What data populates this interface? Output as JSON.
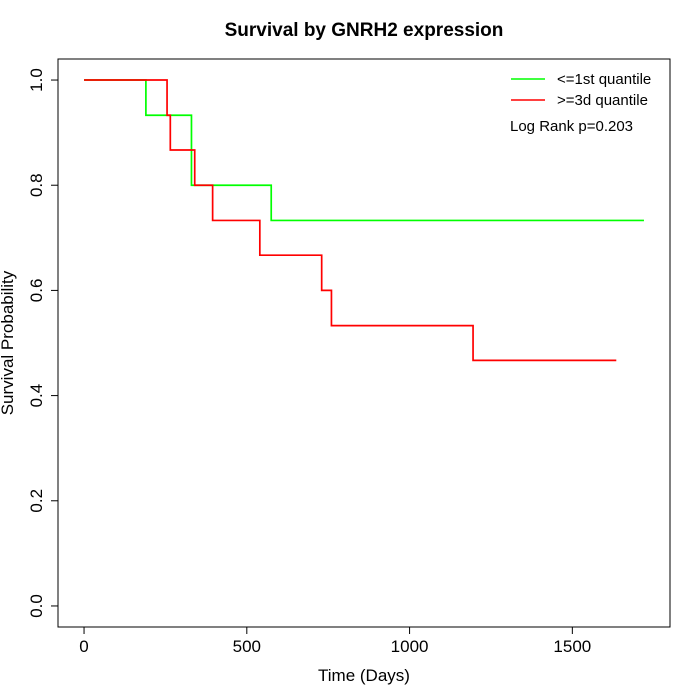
{
  "chart_data": {
    "type": "line",
    "subtype": "kaplan-meier step",
    "title": "Survival by GNRH2 expression",
    "xlabel": "Time (Days)",
    "ylabel": "Survival Probability",
    "xlim": [
      -80,
      1800
    ],
    "ylim": [
      -0.04,
      1.04
    ],
    "x_ticks": [
      0,
      500,
      1000,
      1500
    ],
    "y_ticks": [
      0.0,
      0.2,
      0.4,
      0.6,
      0.8,
      1.0
    ],
    "x_tick_labels": [
      "0",
      "500",
      "1000",
      "1500"
    ],
    "y_tick_labels": [
      "0.0",
      "0.2",
      "0.4",
      "0.6",
      "0.8",
      "1.0"
    ],
    "grid": false,
    "legend_position": "top-right",
    "annotation": "Log Rank p=0.203",
    "series": [
      {
        "name": "<=1st quantile",
        "color": "#00ff00",
        "x": [
          0,
          190,
          330,
          575,
          1720
        ],
        "y": [
          1.0,
          0.933,
          0.8,
          0.733,
          0.733
        ]
      },
      {
        "name": ">=3d quantile",
        "color": "#ff0000",
        "x": [
          0,
          255,
          265,
          340,
          395,
          540,
          730,
          760,
          1195,
          1635
        ],
        "y": [
          1.0,
          0.933,
          0.867,
          0.8,
          0.733,
          0.667,
          0.6,
          0.533,
          0.467,
          0.467
        ]
      }
    ]
  }
}
